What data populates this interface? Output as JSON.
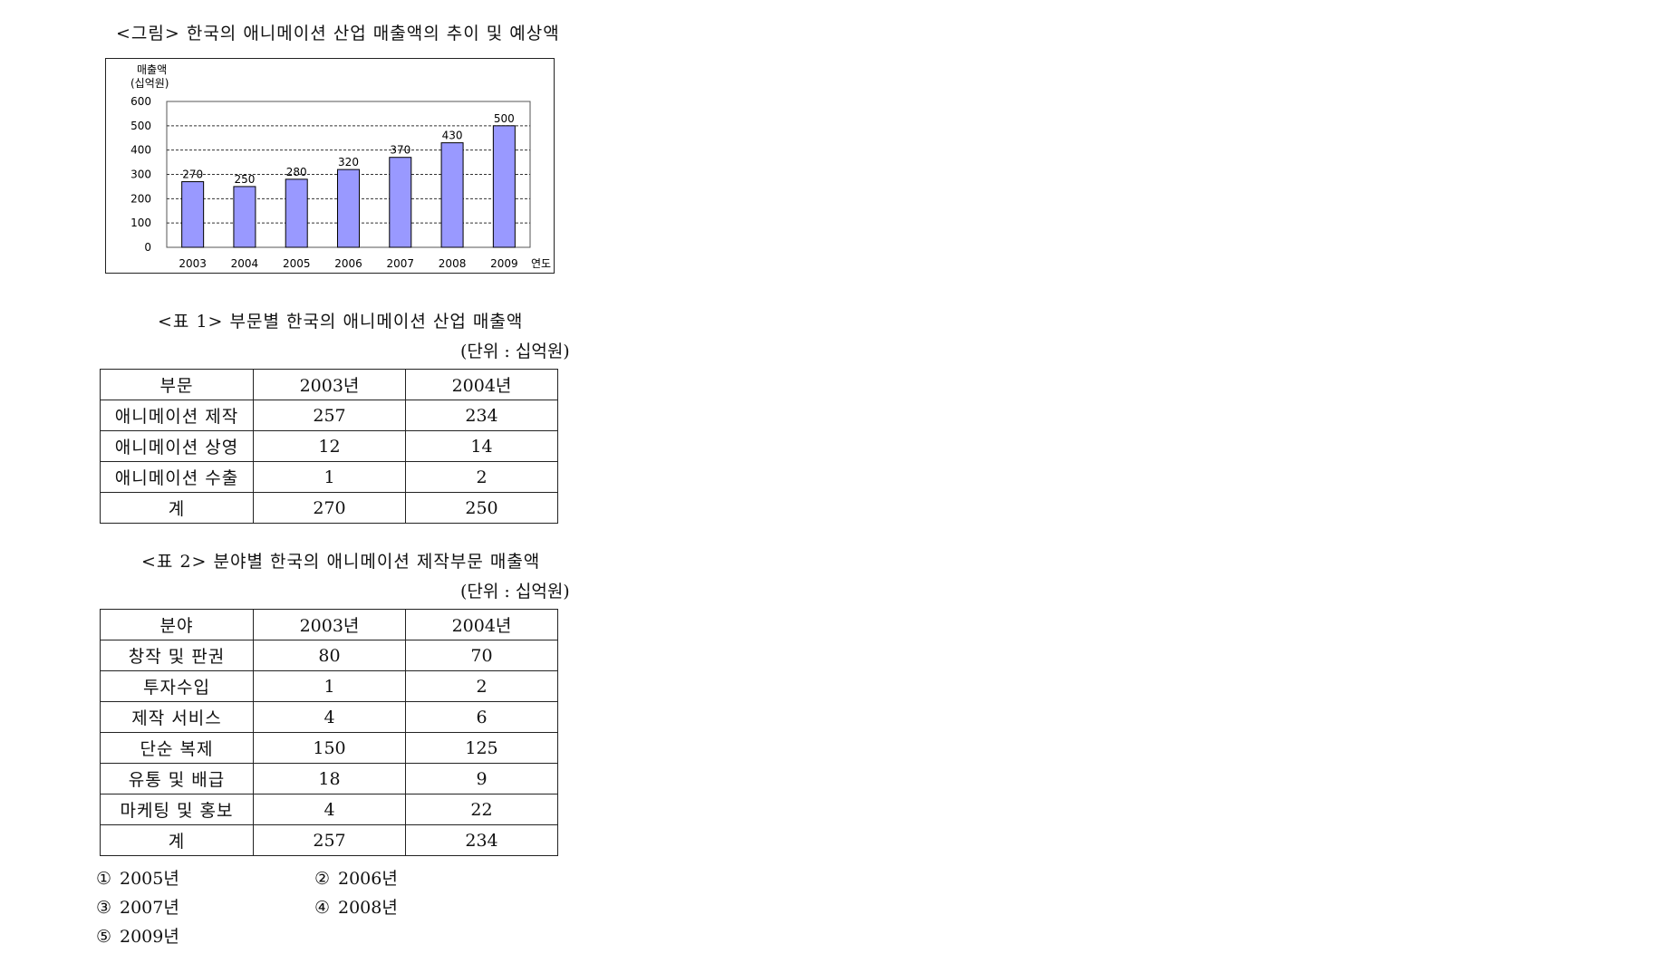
{
  "figure": {
    "title": "<그림> 한국의 애니메이션 산업 매출액의 추이 및 예상액"
  },
  "chart_data": {
    "type": "bar",
    "title": "<그림> 한국의 애니메이션 산업 매출액의 추이 및 예상액",
    "ylabel_line1": "매출액",
    "ylabel_line2": "(십억원)",
    "xlabel": "연도",
    "categories": [
      "2003",
      "2004",
      "2005",
      "2006",
      "2007",
      "2008",
      "2009"
    ],
    "values": [
      270,
      250,
      280,
      320,
      370,
      430,
      500
    ],
    "data_labels": [
      "270",
      "250",
      "280",
      "320",
      "370",
      "430",
      "500"
    ],
    "yticks": [
      0,
      100,
      200,
      300,
      400,
      500,
      600
    ],
    "ylim": [
      0,
      600
    ],
    "grid": "dashed horizontal",
    "bar_color": "#9999ff",
    "bar_stroke": "#000000"
  },
  "table1": {
    "title": "<표 1> 부문별 한국의 애니메이션 산업 매출액",
    "unit": "(단위 : 십억원)",
    "headers": [
      "부문",
      "2003년",
      "2004년"
    ],
    "rows": [
      [
        "애니메이션 제작",
        "257",
        "234"
      ],
      [
        "애니메이션 상영",
        "12",
        "14"
      ],
      [
        "애니메이션 수출",
        "1",
        "2"
      ],
      [
        "계",
        "270",
        "250"
      ]
    ]
  },
  "table2": {
    "title": "<표 2> 분야별 한국의 애니메이션 제작부문 매출액",
    "unit": "(단위 : 십억원)",
    "headers": [
      "분야",
      "2003년",
      "2004년"
    ],
    "rows": [
      [
        "창작 및 판권",
        "80",
        "70"
      ],
      [
        "투자수입",
        "1",
        "2"
      ],
      [
        "제작 서비스",
        "4",
        "6"
      ],
      [
        "단순 복제",
        "150",
        "125"
      ],
      [
        "유통 및 배급",
        "18",
        "9"
      ],
      [
        "마케팅 및 홍보",
        "4",
        "22"
      ],
      [
        "계",
        "257",
        "234"
      ]
    ]
  },
  "choices": [
    {
      "mark": "①",
      "text": "2005년"
    },
    {
      "mark": "②",
      "text": "2006년"
    },
    {
      "mark": "③",
      "text": "2007년"
    },
    {
      "mark": "④",
      "text": "2008년"
    },
    {
      "mark": "⑤",
      "text": "2009년"
    }
  ]
}
